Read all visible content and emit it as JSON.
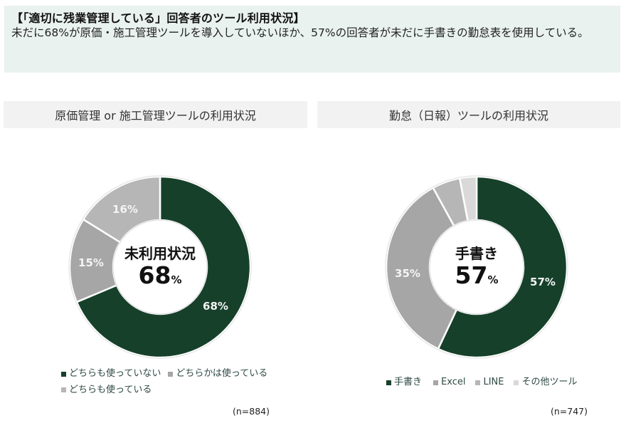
{
  "header": {
    "title": "【「適切に残業管理している」回答者のツール利用状況】",
    "body": "未だに68%が原価・施工管理ツールを導入していないほか、57%の回答者が未だに手書きの勤怠表を使用している。"
  },
  "colors": {
    "dark_green": "#16402a",
    "gray_mid": "#a6a6a6",
    "gray_light": "#b6b6b6",
    "gray_pale": "#d9d9d9",
    "header_bg": "#e9f2ef",
    "bar_bg": "#f2f2f2"
  },
  "charts": {
    "left": {
      "title": "原価管理 or 施工管理ツールの利用状況",
      "center_title": "未利用状況",
      "center_value": "68",
      "center_unit": "%",
      "segment_labels": [
        "68%",
        "15%",
        "16%"
      ],
      "legend": [
        "どちらも使っていない",
        "どちらかは使っている",
        "どちらも使っている"
      ],
      "n": "(n=884)"
    },
    "right": {
      "title": "勤怠（日報）ツールの利用状況",
      "center_title": "手書き",
      "center_value": "57",
      "center_unit": "%",
      "segment_labels": [
        "57%",
        "35%",
        "",
        ""
      ],
      "legend": [
        "手書き",
        "Excel",
        "LINE",
        "その他ツール"
      ],
      "n": "(n=747)"
    }
  },
  "chart_data": [
    {
      "type": "pie",
      "subtype": "donut",
      "title": "原価管理 or 施工管理ツールの利用状況",
      "categories": [
        "どちらも使っていない",
        "どちらかは使っている",
        "どちらも使っている"
      ],
      "values": [
        68,
        15,
        16
      ],
      "colors": [
        "#16402a",
        "#a6a6a6",
        "#b6b6b6"
      ],
      "unit": "%",
      "center_text": "未利用状況 68%",
      "n": 884,
      "legend_position": "bottom"
    },
    {
      "type": "pie",
      "subtype": "donut",
      "title": "勤怠（日報）ツールの利用状況",
      "categories": [
        "手書き",
        "Excel",
        "LINE",
        "その他ツール"
      ],
      "values": [
        57,
        35,
        5,
        3
      ],
      "colors": [
        "#16402a",
        "#a6a6a6",
        "#b6b6b6",
        "#d9d9d9"
      ],
      "unit": "%",
      "center_text": "手書き 57%",
      "n": 747,
      "legend_position": "bottom"
    }
  ]
}
